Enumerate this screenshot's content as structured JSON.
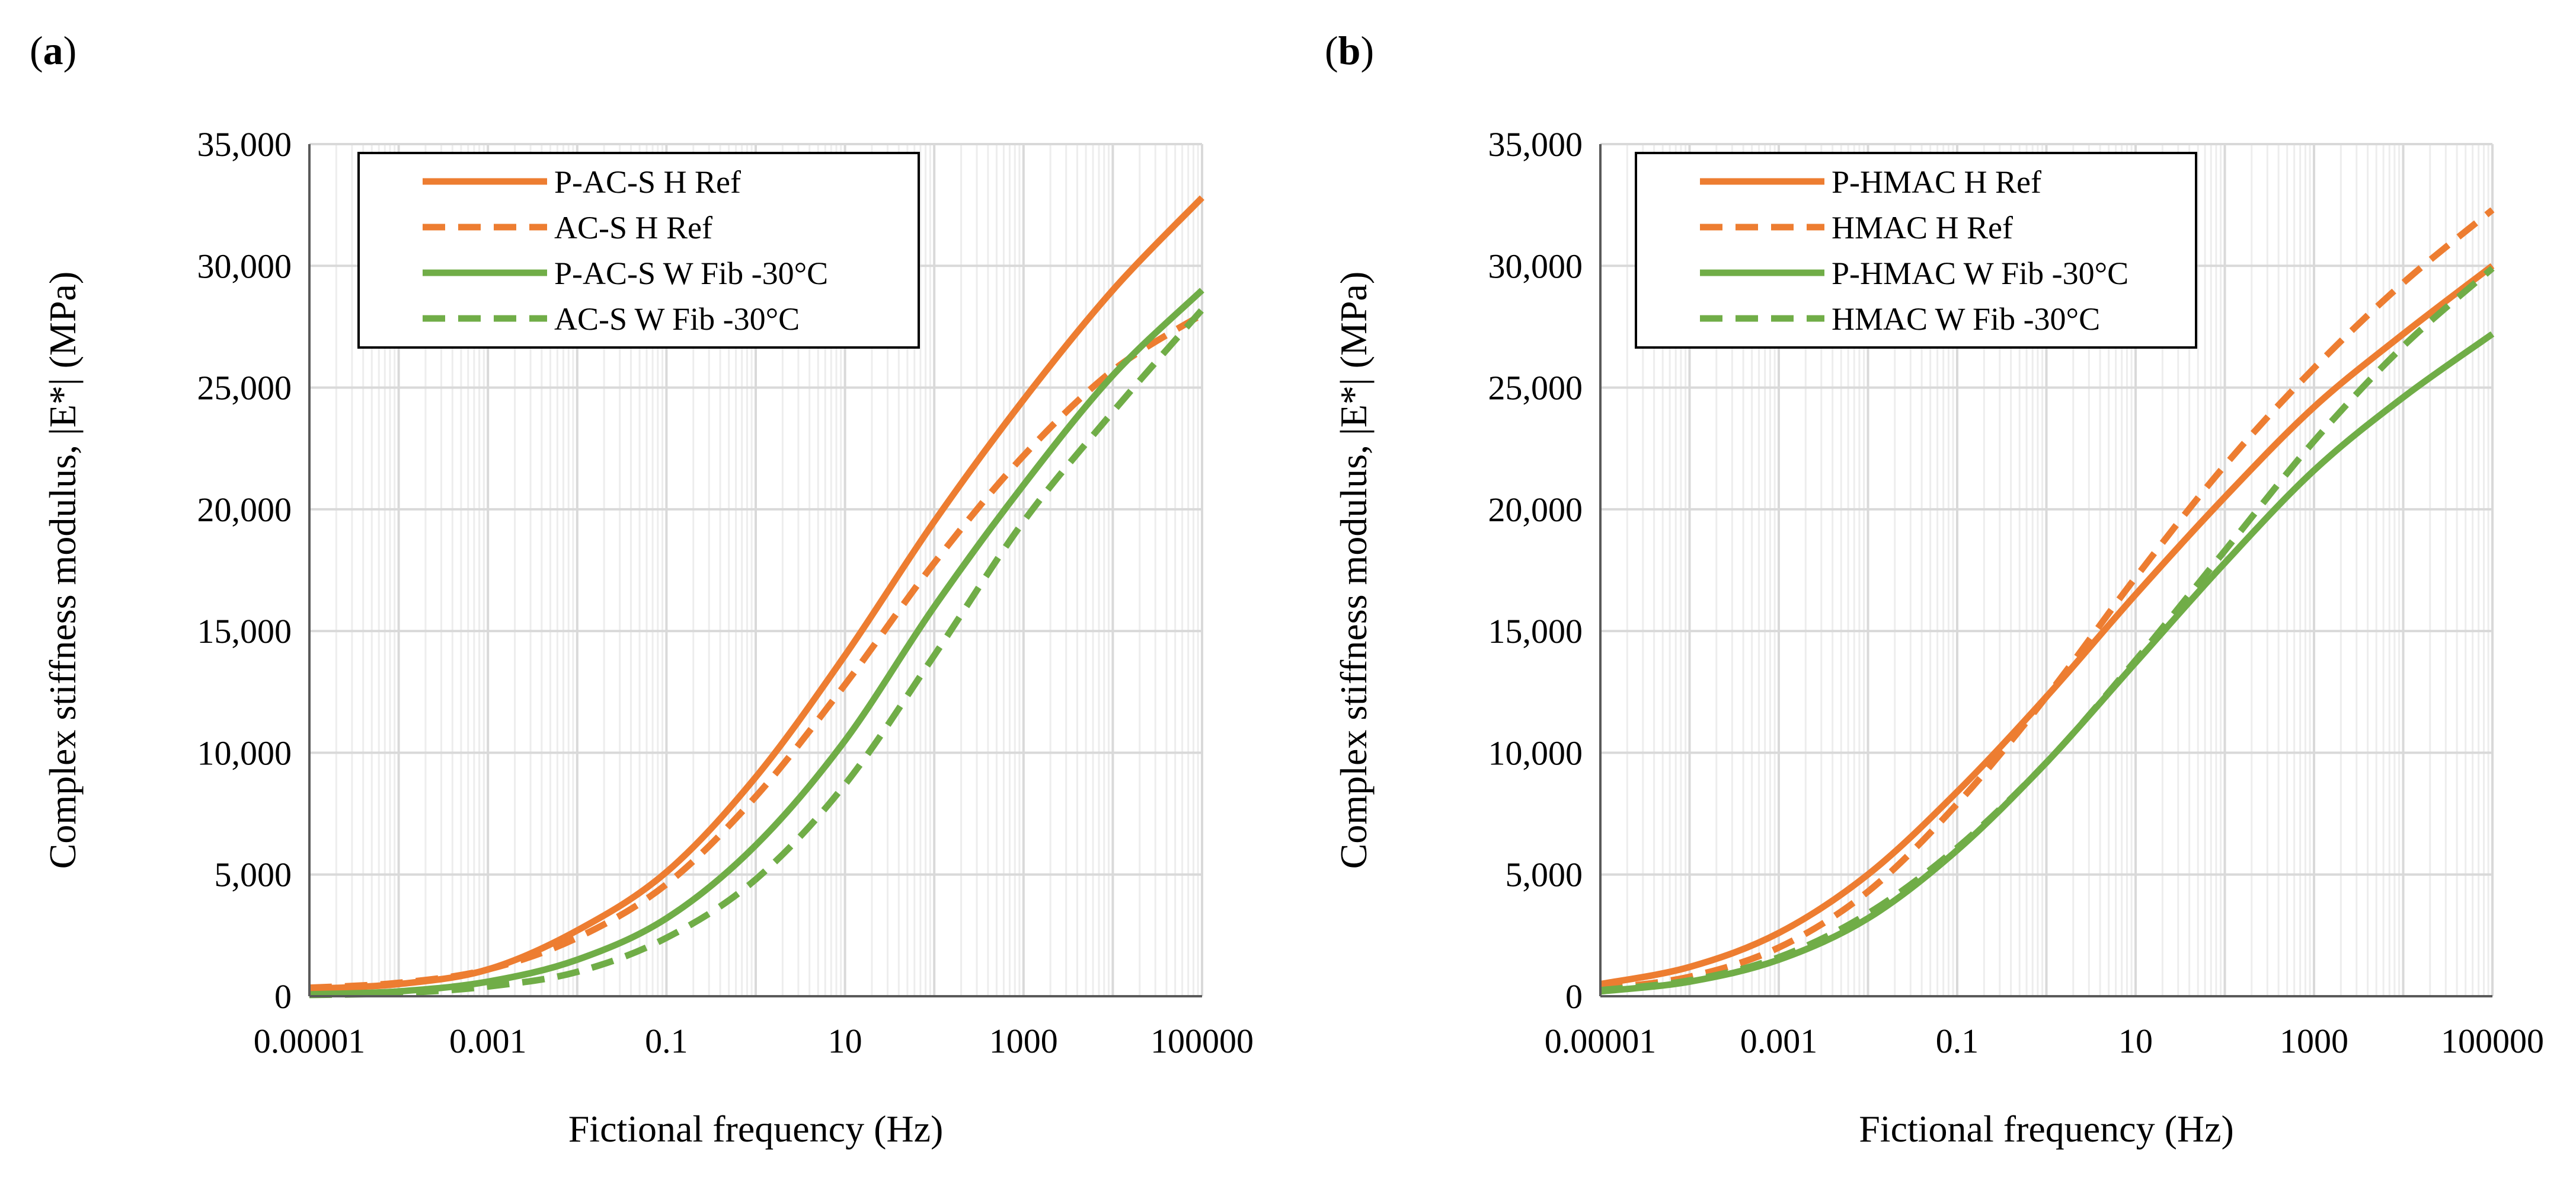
{
  "colors": {
    "orange": "#ED7D31",
    "green": "#70AD47",
    "grid": "#D9D9D9",
    "minor_grid": "#EDEDED"
  },
  "chart_data": [
    {
      "panel": "(a)",
      "panel_letter": "a",
      "type": "line",
      "xscale": "log",
      "xlabel": "Fictional frequency (Hz)",
      "ylabel": "Complex stiffness modulus, |E*| (MPa)",
      "xlim": [
        1e-05,
        100000
      ],
      "ylim": [
        0,
        35000
      ],
      "xticks": [
        "0.00001",
        "0.001",
        "0.1",
        "10",
        "1000",
        "100000"
      ],
      "yticks": [
        "0",
        "5,000",
        "10,000",
        "15,000",
        "20,000",
        "25,000",
        "30,000",
        "35,000"
      ],
      "legend_position": "top-left",
      "x": [
        1e-05,
        0.0001,
        0.001,
        0.01,
        0.1,
        1,
        10,
        100,
        1000,
        10000,
        100000
      ],
      "series": [
        {
          "name": "P-AC-S H Ref",
          "color": "#ED7D31",
          "dash": "solid",
          "values": [
            300,
            500,
            1100,
            2700,
            5100,
            9000,
            14000,
            19500,
            24500,
            29000,
            32800
          ]
        },
        {
          "name": "AC-S H Ref",
          "color": "#ED7D31",
          "dash": "dashed",
          "values": [
            350,
            550,
            1100,
            2400,
            4600,
            8200,
            12800,
            17800,
            22200,
            25700,
            28000
          ]
        },
        {
          "name": "P-AC-S W Fib -30°C",
          "color": "#70AD47",
          "dash": "solid",
          "values": [
            80,
            200,
            600,
            1500,
            3200,
            6200,
            10500,
            16000,
            21000,
            25500,
            29000
          ]
        },
        {
          "name": "AC-S W Fib -30°C",
          "color": "#70AD47",
          "dash": "dashed",
          "values": [
            50,
            130,
            400,
            1000,
            2400,
            4800,
            8700,
            14000,
            19500,
            24000,
            28200
          ]
        }
      ]
    },
    {
      "panel": "(b)",
      "panel_letter": "b",
      "type": "line",
      "xscale": "log",
      "xlabel": "Fictional frequency (Hz)",
      "ylabel": "Complex stiffness modulus, |E*| (MPa)",
      "xlim": [
        1e-05,
        100000
      ],
      "ylim": [
        0,
        35000
      ],
      "xticks": [
        "0.00001",
        "0.001",
        "0.1",
        "10",
        "1000",
        "100000"
      ],
      "yticks": [
        "0",
        "5,000",
        "10,000",
        "15,000",
        "20,000",
        "25,000",
        "30,000",
        "35,000"
      ],
      "legend_position": "top-left",
      "x": [
        1e-05,
        0.0001,
        0.001,
        0.01,
        0.1,
        1,
        10,
        100,
        1000,
        10000,
        100000
      ],
      "series": [
        {
          "name": "P-HMAC H Ref",
          "color": "#ED7D31",
          "dash": "solid",
          "values": [
            500,
            1200,
            2600,
            5000,
            8400,
            12300,
            16500,
            20500,
            24200,
            27200,
            30000
          ]
        },
        {
          "name": "HMAC H Ref",
          "color": "#ED7D31",
          "dash": "dashed",
          "values": [
            300,
            800,
            2000,
            4300,
            7900,
            12300,
            17200,
            21800,
            25800,
            29300,
            32300
          ]
        },
        {
          "name": "P-HMAC W Fib -30°C",
          "color": "#70AD47",
          "dash": "solid",
          "values": [
            200,
            600,
            1500,
            3200,
            6000,
            9600,
            13700,
            17800,
            21600,
            24600,
            27200
          ]
        },
        {
          "name": "HMAC W Fib -30°C",
          "color": "#70AD47",
          "dash": "dashed",
          "values": [
            250,
            650,
            1600,
            3400,
            6100,
            9600,
            13800,
            18300,
            22800,
            26700,
            29900
          ]
        }
      ]
    }
  ]
}
